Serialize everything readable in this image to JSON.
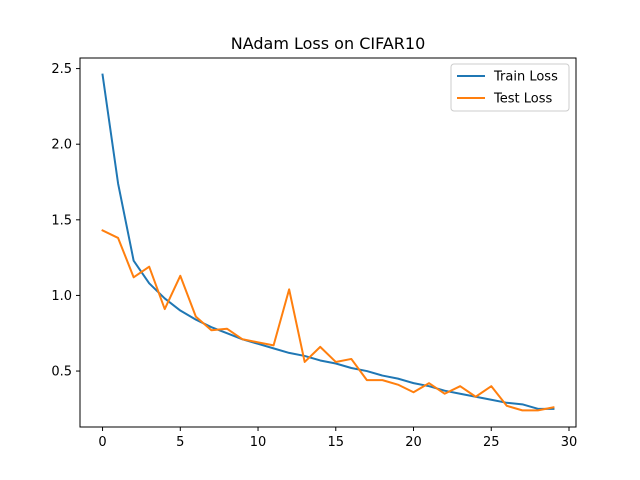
{
  "chart_data": {
    "type": "line",
    "title": "NAdam Loss on CIFAR10",
    "xlabel": "",
    "ylabel": "",
    "xlim": [
      -1.45,
      30.45
    ],
    "ylim": [
      0.13,
      2.57
    ],
    "xticks": [
      0,
      5,
      10,
      15,
      20,
      25,
      30
    ],
    "yticks": [
      0.5,
      1.0,
      1.5,
      2.0,
      2.5
    ],
    "ytick_labels": [
      "0.5",
      "1.0",
      "1.5",
      "2.0",
      "2.5"
    ],
    "grid": false,
    "legend": "top-right",
    "x": [
      0,
      1,
      2,
      3,
      4,
      5,
      6,
      7,
      8,
      9,
      10,
      11,
      12,
      13,
      14,
      15,
      16,
      17,
      18,
      19,
      20,
      21,
      22,
      23,
      24,
      25,
      26,
      27,
      28,
      29
    ],
    "series": [
      {
        "name": "Train Loss",
        "color": "#1f77b4",
        "values": [
          2.46,
          1.74,
          1.23,
          1.08,
          0.98,
          0.9,
          0.84,
          0.79,
          0.75,
          0.71,
          0.68,
          0.65,
          0.62,
          0.6,
          0.57,
          0.55,
          0.52,
          0.5,
          0.47,
          0.45,
          0.42,
          0.4,
          0.37,
          0.35,
          0.33,
          0.31,
          0.29,
          0.28,
          0.25,
          0.25
        ]
      },
      {
        "name": "Test Loss",
        "color": "#ff7f0e",
        "values": [
          1.43,
          1.38,
          1.12,
          1.19,
          0.91,
          1.13,
          0.86,
          0.77,
          0.78,
          0.71,
          0.69,
          0.67,
          1.04,
          0.56,
          0.66,
          0.56,
          0.58,
          0.44,
          0.44,
          0.41,
          0.36,
          0.42,
          0.35,
          0.4,
          0.33,
          0.4,
          0.27,
          0.24,
          0.24,
          0.26
        ]
      }
    ]
  }
}
